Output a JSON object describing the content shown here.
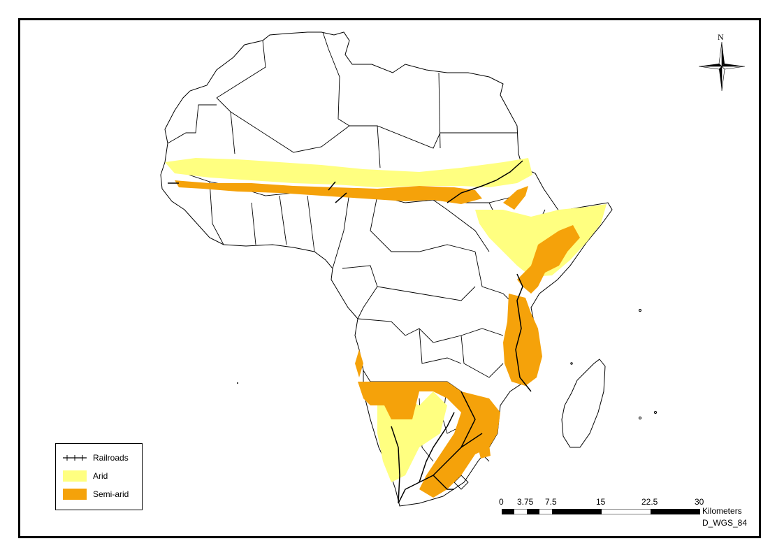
{
  "map": {
    "region": "Africa",
    "colors": {
      "arid": "#ffff80",
      "semi_arid": "#f5a20a",
      "railroad": "#000000",
      "boundary": "#000000",
      "land": "#ffffff"
    }
  },
  "legend": {
    "items": [
      {
        "label": "Railroads",
        "symbol": "railroad-line",
        "color": "#000000"
      },
      {
        "label": "Arid",
        "symbol": "fill",
        "color": "#ffff80"
      },
      {
        "label": "Semi-arid",
        "symbol": "fill",
        "color": "#f5a20a"
      }
    ]
  },
  "scale_bar": {
    "ticks": [
      "0",
      "3.75",
      "7.5",
      "15",
      "22.5",
      "30"
    ],
    "unit": "Kilometers",
    "datum": "D_WGS_84"
  },
  "north_arrow": {
    "label": "N",
    "icon": "compass-rose-icon"
  }
}
